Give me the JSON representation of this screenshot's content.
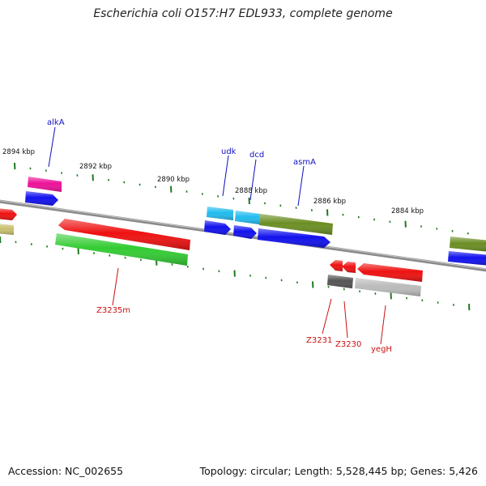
{
  "title": "Escherichia coli O157:H7 EDL933, complete genome",
  "footer": {
    "accession": "Accession: NC_002655",
    "summary": "Topology: circular; Length: 5,528,445 bp; Genes: 5,426"
  },
  "scale_labels": [
    "2894 kbp",
    "2892 kbp",
    "2890 kbp",
    "2888 kbp",
    "2886 kbp",
    "2884 kbp"
  ],
  "gene_labels": [
    {
      "text": "alkA",
      "strand": "top"
    },
    {
      "text": "udk",
      "strand": "top"
    },
    {
      "text": "dcd",
      "strand": "top"
    },
    {
      "text": "asmA",
      "strand": "top"
    },
    {
      "text": "Z3235m",
      "strand": "bottom"
    },
    {
      "text": "Z3231",
      "strand": "bottom"
    },
    {
      "text": "Z3230",
      "strand": "bottom"
    },
    {
      "text": "yegH",
      "strand": "bottom"
    }
  ],
  "colors": {
    "backbone": "#8a8a8a",
    "tick": "#1f7a1f",
    "top_label": "#1010c0",
    "bottom_label": "#cc1010",
    "red": "#ee1111",
    "blue": "#1111ee",
    "green": "#33cc33",
    "olive": "#6b8e23",
    "magenta": "#ee1199",
    "cyan": "#22bbee",
    "gray_dark": "#555555",
    "gray_light": "#bbbbbb",
    "khaki": "#c8c070"
  }
}
